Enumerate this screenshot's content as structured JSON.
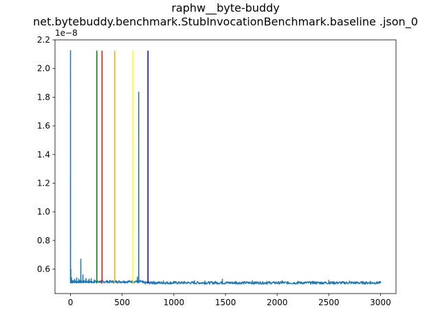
{
  "chart_data": {
    "type": "line",
    "title": "raphw__byte-buddy",
    "subtitle": "net.bytebuddy.benchmark.StubInvocationBenchmark.baseline .json_0",
    "xlabel": "",
    "ylabel": "",
    "y_offset_label": "1e−8",
    "xlim": [
      -150,
      3150
    ],
    "ylim": [
      0.43,
      2.2
    ],
    "y_scale_factor": 1e-08,
    "x_ticks": [
      0,
      500,
      1000,
      1500,
      2000,
      2500,
      3000
    ],
    "y_ticks": [
      0.6,
      0.8,
      1.0,
      1.2,
      1.4,
      1.6,
      1.8,
      2.0,
      2.2
    ],
    "x_tick_labels": [
      "0",
      "500",
      "1000",
      "1500",
      "2000",
      "2500",
      "3000"
    ],
    "y_tick_labels": [
      "0.6",
      "0.8",
      "1.0",
      "1.2",
      "1.4",
      "1.6",
      "1.8",
      "2.0",
      "2.2"
    ],
    "grid": false,
    "series": [
      {
        "color": "#1f77b4",
        "x_start": 0,
        "x_end": 3000,
        "baseline": 0.505,
        "spikes": [
          {
            "x": 0,
            "y": 2.125
          },
          {
            "x": 3,
            "y": 0.6
          },
          {
            "x": 10,
            "y": 0.54
          },
          {
            "x": 20,
            "y": 0.52
          },
          {
            "x": 40,
            "y": 0.53
          },
          {
            "x": 60,
            "y": 0.54
          },
          {
            "x": 80,
            "y": 0.53
          },
          {
            "x": 100,
            "y": 0.67
          },
          {
            "x": 120,
            "y": 0.56
          },
          {
            "x": 150,
            "y": 0.535
          },
          {
            "x": 180,
            "y": 0.53
          },
          {
            "x": 200,
            "y": 0.535
          },
          {
            "x": 230,
            "y": 0.525
          },
          {
            "x": 300,
            "y": 0.52
          },
          {
            "x": 380,
            "y": 0.52
          },
          {
            "x": 450,
            "y": 0.515
          },
          {
            "x": 520,
            "y": 0.515
          },
          {
            "x": 600,
            "y": 0.52
          },
          {
            "x": 648,
            "y": 0.545
          },
          {
            "x": 660,
            "y": 1.835
          },
          {
            "x": 700,
            "y": 0.52
          },
          {
            "x": 800,
            "y": 0.515
          },
          {
            "x": 900,
            "y": 0.518
          },
          {
            "x": 1000,
            "y": 0.515
          },
          {
            "x": 1100,
            "y": 0.515
          },
          {
            "x": 1200,
            "y": 0.52
          },
          {
            "x": 1300,
            "y": 0.518
          },
          {
            "x": 1400,
            "y": 0.515
          },
          {
            "x": 1470,
            "y": 0.53
          },
          {
            "x": 1600,
            "y": 0.515
          },
          {
            "x": 1760,
            "y": 0.52
          },
          {
            "x": 1900,
            "y": 0.515
          },
          {
            "x": 2050,
            "y": 0.52
          },
          {
            "x": 2200,
            "y": 0.515
          },
          {
            "x": 2350,
            "y": 0.515
          },
          {
            "x": 2500,
            "y": 0.522
          },
          {
            "x": 2700,
            "y": 0.518
          },
          {
            "x": 2900,
            "y": 0.515
          },
          {
            "x": 3000,
            "y": 0.51
          }
        ]
      }
    ],
    "vertical_lines": [
      {
        "x": 255,
        "ymin": 0.5,
        "ymax": 2.125,
        "color": "#008000"
      },
      {
        "x": 305,
        "ymin": 0.5,
        "ymax": 2.125,
        "color": "#ff0000"
      },
      {
        "x": 428,
        "ymin": 0.5,
        "ymax": 2.125,
        "color": "#ffa500"
      },
      {
        "x": 605,
        "ymin": 0.5,
        "ymax": 2.125,
        "color": "#ffff00"
      },
      {
        "x": 750,
        "ymin": 0.5,
        "ymax": 2.125,
        "color": "#0000cd"
      }
    ]
  }
}
